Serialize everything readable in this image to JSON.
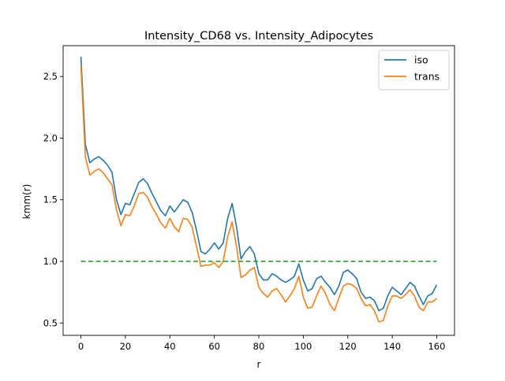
{
  "chart_data": {
    "type": "line",
    "title": "Intensity_CD68 vs. Intensity_Adipocytes",
    "xlabel": "r",
    "ylabel": "kmm(r)",
    "xlim": [
      -8,
      168
    ],
    "ylim": [
      0.4,
      2.75
    ],
    "xticks": [
      0,
      20,
      40,
      60,
      80,
      100,
      120,
      140,
      160
    ],
    "yticks": [
      0.5,
      1.0,
      1.5,
      2.0,
      2.5
    ],
    "xtick_labels": [
      "0",
      "20",
      "40",
      "60",
      "80",
      "100",
      "120",
      "140",
      "160"
    ],
    "ytick_labels": [
      "0.5",
      "1.0",
      "1.5",
      "2.0",
      "2.5"
    ],
    "grid": false,
    "legend_position": "top-right",
    "series": [
      {
        "name": "iso",
        "color": "#1f77b4",
        "style": "solid",
        "x": [
          0,
          2,
          4,
          6,
          8,
          10,
          12,
          14,
          16,
          18,
          20,
          22,
          24,
          26,
          28,
          30,
          32,
          34,
          36,
          38,
          40,
          42,
          44,
          46,
          48,
          50,
          52,
          54,
          56,
          58,
          60,
          62,
          64,
          66,
          68,
          70,
          72,
          74,
          76,
          78,
          80,
          82,
          84,
          86,
          88,
          90,
          92,
          94,
          96,
          98,
          100,
          102,
          104,
          106,
          108,
          110,
          112,
          114,
          116,
          118,
          120,
          122,
          124,
          126,
          128,
          130,
          132,
          134,
          136,
          138,
          140,
          142,
          144,
          146,
          148,
          150,
          152,
          154,
          156,
          158,
          160
        ],
        "y": [
          2.66,
          1.95,
          1.8,
          1.83,
          1.85,
          1.82,
          1.78,
          1.72,
          1.5,
          1.38,
          1.47,
          1.46,
          1.55,
          1.64,
          1.67,
          1.63,
          1.55,
          1.48,
          1.41,
          1.37,
          1.45,
          1.4,
          1.45,
          1.5,
          1.48,
          1.4,
          1.25,
          1.08,
          1.06,
          1.1,
          1.15,
          1.1,
          1.15,
          1.35,
          1.47,
          1.28,
          1.02,
          1.08,
          1.12,
          1.06,
          0.9,
          0.85,
          0.85,
          0.9,
          0.88,
          0.85,
          0.83,
          0.85,
          0.88,
          0.98,
          0.85,
          0.76,
          0.78,
          0.86,
          0.88,
          0.83,
          0.79,
          0.73,
          0.8,
          0.91,
          0.93,
          0.9,
          0.86,
          0.75,
          0.7,
          0.71,
          0.68,
          0.6,
          0.62,
          0.72,
          0.79,
          0.76,
          0.73,
          0.78,
          0.83,
          0.8,
          0.72,
          0.65,
          0.72,
          0.74,
          0.81
        ]
      },
      {
        "name": "trans",
        "color": "#ff7f0e",
        "style": "solid",
        "x": [
          0,
          2,
          4,
          6,
          8,
          10,
          12,
          14,
          16,
          18,
          20,
          22,
          24,
          26,
          28,
          30,
          32,
          34,
          36,
          38,
          40,
          42,
          44,
          46,
          48,
          50,
          52,
          54,
          56,
          58,
          60,
          62,
          64,
          66,
          68,
          70,
          72,
          74,
          76,
          78,
          80,
          82,
          84,
          86,
          88,
          90,
          92,
          94,
          96,
          98,
          100,
          102,
          104,
          106,
          108,
          110,
          112,
          114,
          116,
          118,
          120,
          122,
          124,
          126,
          128,
          130,
          132,
          134,
          136,
          138,
          140,
          142,
          144,
          146,
          148,
          150,
          152,
          154,
          156,
          158,
          160
        ],
        "y": [
          2.59,
          1.85,
          1.7,
          1.73,
          1.75,
          1.72,
          1.67,
          1.62,
          1.42,
          1.29,
          1.38,
          1.37,
          1.45,
          1.55,
          1.56,
          1.52,
          1.44,
          1.38,
          1.31,
          1.27,
          1.35,
          1.28,
          1.24,
          1.35,
          1.34,
          1.28,
          1.12,
          0.96,
          0.97,
          0.97,
          0.99,
          0.95,
          1.0,
          1.2,
          1.32,
          1.12,
          0.87,
          0.89,
          0.93,
          0.95,
          0.79,
          0.74,
          0.71,
          0.76,
          0.78,
          0.73,
          0.67,
          0.72,
          0.78,
          0.88,
          0.71,
          0.62,
          0.63,
          0.72,
          0.8,
          0.74,
          0.65,
          0.6,
          0.7,
          0.8,
          0.82,
          0.81,
          0.78,
          0.7,
          0.64,
          0.65,
          0.6,
          0.51,
          0.52,
          0.64,
          0.72,
          0.72,
          0.7,
          0.73,
          0.77,
          0.72,
          0.63,
          0.6,
          0.67,
          0.67,
          0.7
        ]
      },
      {
        "name": "",
        "color": "#2ca02c",
        "style": "dashed",
        "x": [
          0,
          160
        ],
        "y": [
          1.0,
          1.0
        ]
      }
    ]
  }
}
